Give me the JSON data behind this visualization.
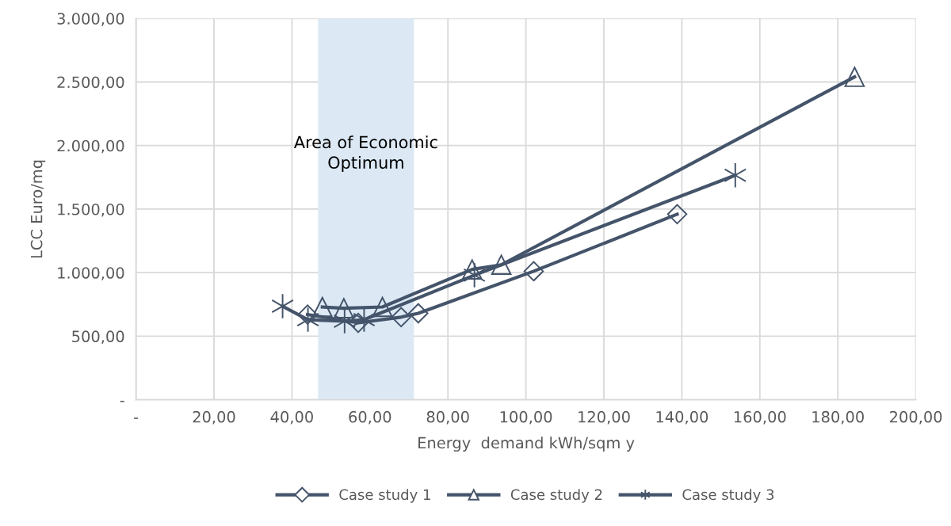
{
  "chart_data": {
    "type": "line",
    "xlabel": "Energy  demand kWh/sqm y",
    "ylabel": "LCC Euro/mq",
    "series": [
      {
        "name": "Case study 1",
        "color": "#44546a",
        "marker": "diamond",
        "x": [
          44,
          57,
          68,
          72.4,
          102,
          138.8
        ],
        "values": [
          670,
          605,
          650,
          680,
          1011,
          1460
        ]
      },
      {
        "name": "Case study 2",
        "color": "#44546a",
        "marker": "triangle",
        "x": [
          47.8,
          53.3,
          63.2,
          86.2,
          93.7,
          184.3
        ],
        "values": [
          730,
          720,
          730,
          1025,
          1062,
          2540
        ]
      },
      {
        "name": "Case study 3",
        "color": "#44546a",
        "marker": "cross",
        "x": [
          37.6,
          44.1,
          53.5,
          58.5,
          86.8,
          153.7
        ],
        "values": [
          736,
          630,
          618,
          630,
          980,
          1766
        ]
      }
    ],
    "bands": [
      {
        "axis": "x",
        "from": 46.7,
        "to": 71.3,
        "label": "Area of Economic\nOptimum",
        "color": "#dce9f5"
      }
    ],
    "xlim": [
      0,
      200
    ],
    "ylim": [
      0,
      3000
    ],
    "xticks": [
      {
        "value": 0,
        "label": "-"
      },
      {
        "value": 20,
        "label": "20,00"
      },
      {
        "value": 40,
        "label": "40,00"
      },
      {
        "value": 60,
        "label": "60,00"
      },
      {
        "value": 80,
        "label": "80,00"
      },
      {
        "value": 100,
        "label": "100,00"
      },
      {
        "value": 120,
        "label": "120,00"
      },
      {
        "value": 140,
        "label": "140,00"
      },
      {
        "value": 160,
        "label": "160,00"
      },
      {
        "value": 180,
        "label": "180,00"
      },
      {
        "value": 200,
        "label": "200,00"
      }
    ],
    "yticks": [
      {
        "value": 0,
        "label": "-"
      },
      {
        "value": 500,
        "label": "500,00"
      },
      {
        "value": 1000,
        "label": "1.000,00"
      },
      {
        "value": 1500,
        "label": "1.500,00"
      },
      {
        "value": 2000,
        "label": "2.000,00"
      },
      {
        "value": 2500,
        "label": "2.500,00"
      },
      {
        "value": 3000,
        "label": "3.000,00"
      }
    ],
    "grid": true,
    "legend": "bottom",
    "line_style": "solid"
  }
}
